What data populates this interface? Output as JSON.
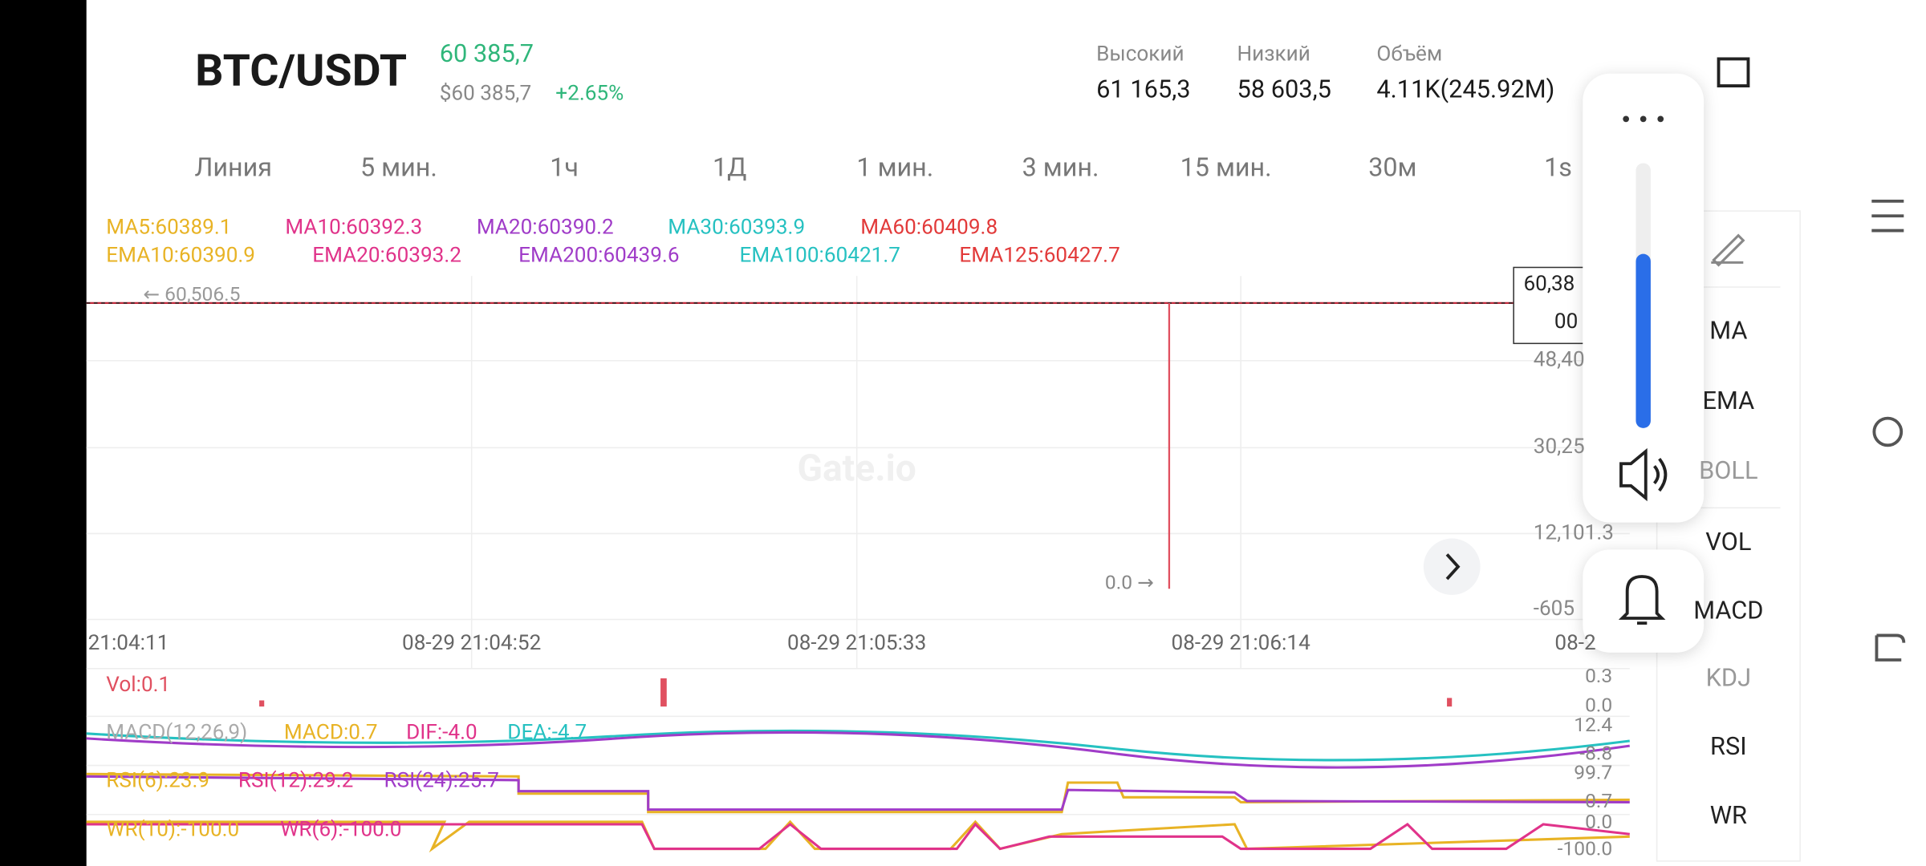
{
  "header": {
    "pair": "BTC/USDT",
    "price": "60 385,7",
    "price_usd": "$60 385,7",
    "change": "+2.65%",
    "stats": [
      {
        "label": "Высокий",
        "value": "61 165,3"
      },
      {
        "label": "Низкий",
        "value": "58 603,5"
      },
      {
        "label": "Объём",
        "value": "4.11K(245.92M)"
      }
    ]
  },
  "intervals": [
    "Линия",
    "5 мин.",
    "1ч",
    "1Д",
    "1 мин.",
    "3 мин.",
    "15 мин.",
    "30м",
    "1s"
  ],
  "ma_legend": [
    {
      "text": "MA5:60389.1",
      "color": "#e8b325"
    },
    {
      "text": "MA10:60392.3",
      "color": "#e0338a"
    },
    {
      "text": "MA20:60390.2",
      "color": "#a03cc8"
    },
    {
      "text": "MA30:60393.9",
      "color": "#26c1c1"
    },
    {
      "text": "MA60:60409.8",
      "color": "#e23a3a"
    }
  ],
  "ema_legend": [
    {
      "text": "EMA10:60390.9",
      "color": "#e8b325"
    },
    {
      "text": "EMA20:60393.2",
      "color": "#e0338a"
    },
    {
      "text": "EMA200:60439.6",
      "color": "#a03cc8"
    },
    {
      "text": "EMA100:60421.7",
      "color": "#26c1c1"
    },
    {
      "text": "EMA125:60427.7",
      "color": "#e23a3a"
    }
  ],
  "chart": {
    "high_marker": "← 60,506.5",
    "low_marker": "0.0 →",
    "watermark": "Gate.io",
    "price_axis": [
      "48,40",
      "30,25",
      "12,101.3",
      "-605"
    ],
    "current_price": [
      "60,38",
      "00"
    ],
    "time_axis": [
      "21:04:11",
      "08-29 21:04:52",
      "08-29 21:05:33",
      "08-29 21:06:14",
      "08-2"
    ]
  },
  "vol": {
    "label": "Vol:0.1",
    "axis": [
      "0.3",
      "0.0"
    ]
  },
  "macd": {
    "labels": [
      {
        "text": "MACD(12,26,9)",
        "color": "#aaaaaa"
      },
      {
        "text": "MACD:0.7",
        "color": "#e8b325"
      },
      {
        "text": "DIF:-4.0",
        "color": "#e0338a"
      },
      {
        "text": "DEA:-4.7",
        "color": "#26c1c1"
      }
    ],
    "axis": [
      "12.4",
      "-8.8"
    ]
  },
  "rsi": {
    "labels": [
      {
        "text": "RSI(6):23.9",
        "color": "#e8b325"
      },
      {
        "text": "RSI(12):29.2",
        "color": "#e0338a"
      },
      {
        "text": "RSI(24):25.7",
        "color": "#a03cc8"
      }
    ],
    "axis": [
      "99.7",
      "0.7"
    ]
  },
  "wr": {
    "labels": [
      {
        "text": "WR(10):-100.0",
        "color": "#e8b325"
      },
      {
        "text": "WR(6):-100.0",
        "color": "#e0338a"
      }
    ],
    "axis": [
      "0.0",
      "-100.0"
    ]
  },
  "indicators": [
    "MA",
    "EMA",
    "BOLL",
    "VOL",
    "MACD",
    "KDJ",
    "RSI",
    "WR"
  ]
}
